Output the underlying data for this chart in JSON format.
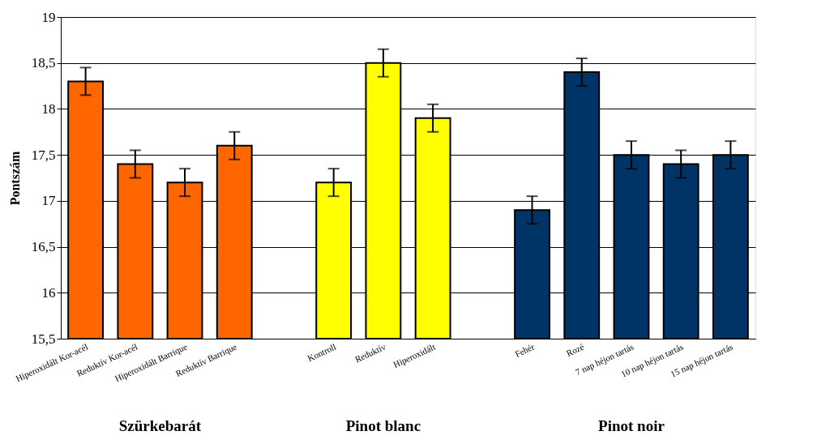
{
  "chart_data": {
    "type": "bar",
    "ylabel": "Pontszám",
    "categories": [
      "Hiperoxidált Kor-acél",
      "Reduktív Kor-acél",
      "Hiperoxidált Barrique",
      "Reduktív Barrique",
      null,
      "Kontroll",
      "Reduktív",
      "Hiperoxidált",
      null,
      "Fehér",
      "Rozé",
      "7 nap héjon tartás",
      "10 nap héjon tartás",
      "15 nap héjon tartás"
    ],
    "values": [
      18.3,
      17.4,
      17.2,
      17.6,
      null,
      17.2,
      18.5,
      17.9,
      null,
      16.9,
      18.4,
      17.5,
      17.4,
      17.5
    ],
    "errors": [
      0.15,
      0.15,
      0.15,
      0.15,
      null,
      0.15,
      0.15,
      0.15,
      null,
      0.15,
      0.15,
      0.15,
      0.15,
      0.15
    ],
    "colors": [
      "#ff6600",
      "#ff6600",
      "#ff6600",
      "#ff6600",
      null,
      "#ffff00",
      "#ffff00",
      "#ffff00",
      null,
      "#003366",
      "#003366",
      "#003366",
      "#003366",
      "#003366"
    ],
    "ylim": [
      15.5,
      19
    ],
    "yticks": [
      {
        "value": 15.5,
        "label": "15,5"
      },
      16,
      {
        "value": 16.5,
        "label": "16,5"
      },
      17,
      {
        "value": 17.5,
        "label": "17,5"
      },
      18,
      {
        "value": 18.5,
        "label": "18,5"
      },
      19
    ],
    "grid": "y",
    "annotations": [
      "Szürkebarát",
      "Pinot blanc",
      "Pinot noir"
    ]
  }
}
